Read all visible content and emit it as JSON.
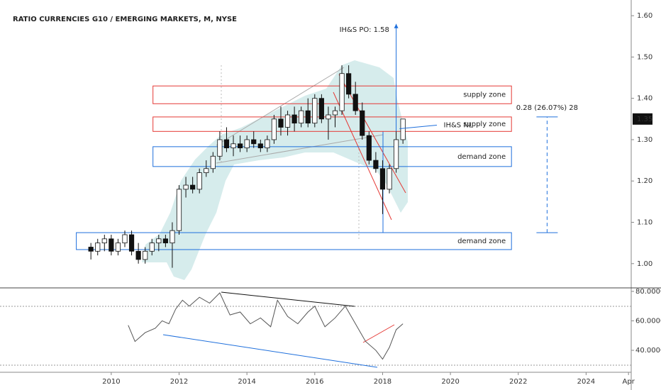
{
  "chart_data": [
    {
      "type": "candlestick",
      "title": "RATIO CURRENCIES G10  / EMERGING MARKETS, M, NYSE",
      "x": [
        2009.4,
        2009.6,
        2009.8,
        2010.0,
        2010.2,
        2010.4,
        2010.6,
        2010.8,
        2011.0,
        2011.2,
        2011.4,
        2011.6,
        2011.8,
        2012.0,
        2012.2,
        2012.4,
        2012.6,
        2012.8,
        2013.0,
        2013.2,
        2013.4,
        2013.6,
        2013.8,
        2014.0,
        2014.2,
        2014.4,
        2014.6,
        2014.8,
        2015.0,
        2015.2,
        2015.4,
        2015.6,
        2015.8,
        2016.0,
        2016.2,
        2016.4,
        2016.6,
        2016.8,
        2017.0,
        2017.2,
        2017.4,
        2017.6,
        2017.8,
        2018.0,
        2018.2,
        2018.4,
        2018.6
      ],
      "open": [
        1.04,
        1.03,
        1.05,
        1.06,
        1.03,
        1.05,
        1.07,
        1.03,
        1.01,
        1.03,
        1.05,
        1.06,
        1.05,
        1.08,
        1.18,
        1.19,
        1.18,
        1.22,
        1.23,
        1.26,
        1.3,
        1.28,
        1.29,
        1.28,
        1.3,
        1.29,
        1.28,
        1.3,
        1.35,
        1.33,
        1.36,
        1.34,
        1.37,
        1.34,
        1.4,
        1.35,
        1.36,
        1.37,
        1.46,
        1.41,
        1.37,
        1.31,
        1.25,
        1.23,
        1.18,
        1.23,
        1.3
      ],
      "high": [
        1.05,
        1.06,
        1.07,
        1.07,
        1.06,
        1.08,
        1.08,
        1.05,
        1.04,
        1.06,
        1.07,
        1.07,
        1.1,
        1.19,
        1.21,
        1.21,
        1.23,
        1.25,
        1.27,
        1.32,
        1.33,
        1.31,
        1.31,
        1.31,
        1.32,
        1.3,
        1.31,
        1.36,
        1.38,
        1.37,
        1.38,
        1.38,
        1.4,
        1.41,
        1.41,
        1.38,
        1.38,
        1.48,
        1.48,
        1.44,
        1.39,
        1.32,
        1.27,
        1.25,
        1.24,
        1.32,
        1.35
      ],
      "low": [
        1.01,
        1.02,
        1.03,
        1.02,
        1.02,
        1.04,
        1.02,
        1.0,
        1.0,
        1.02,
        1.03,
        1.04,
        0.99,
        1.07,
        1.16,
        1.17,
        1.17,
        1.21,
        1.22,
        1.25,
        1.27,
        1.26,
        1.27,
        1.27,
        1.28,
        1.27,
        1.27,
        1.29,
        1.31,
        1.31,
        1.32,
        1.33,
        1.33,
        1.33,
        1.34,
        1.3,
        1.33,
        1.36,
        1.4,
        1.36,
        1.3,
        1.24,
        1.22,
        1.12,
        1.17,
        1.22,
        1.29
      ],
      "close": [
        1.03,
        1.05,
        1.06,
        1.03,
        1.05,
        1.07,
        1.03,
        1.01,
        1.03,
        1.05,
        1.06,
        1.05,
        1.08,
        1.18,
        1.19,
        1.18,
        1.22,
        1.23,
        1.26,
        1.3,
        1.28,
        1.29,
        1.28,
        1.3,
        1.29,
        1.28,
        1.3,
        1.35,
        1.33,
        1.36,
        1.34,
        1.37,
        1.34,
        1.4,
        1.35,
        1.36,
        1.37,
        1.46,
        1.41,
        1.37,
        1.31,
        1.25,
        1.23,
        1.18,
        1.23,
        1.3,
        1.35
      ],
      "up_color": "#ffffff",
      "down_color": "#111111",
      "last_price": 1.35,
      "xlim": [
        2006.72,
        2025.33
      ],
      "ylim": [
        0.943,
        1.638
      ],
      "yticks": [
        {
          "value": 1.0,
          "label": "1.00"
        },
        {
          "value": 1.1,
          "label": "1.10"
        },
        {
          "value": 1.2,
          "label": "1.20"
        },
        {
          "value": 1.3,
          "label": "1.30"
        },
        {
          "value": 1.4,
          "label": "1.40"
        },
        {
          "value": 1.5,
          "label": "1.50"
        },
        {
          "value": 1.6,
          "label": "1.60"
        }
      ],
      "zones": [
        {
          "label": "supply zone",
          "top": 1.43,
          "bottom": 1.387,
          "start": 2011.23,
          "end": 2021.8,
          "color": "#e53935"
        },
        {
          "label": "supply zone",
          "top": 1.355,
          "bottom": 1.32,
          "start": 2011.23,
          "end": 2021.8,
          "color": "#e53935"
        },
        {
          "label": "demand zone",
          "top": 1.283,
          "bottom": 1.235,
          "start": 2011.23,
          "end": 2021.8,
          "color": "#1e6fdc"
        },
        {
          "label": "demand zone",
          "top": 1.075,
          "bottom": 1.034,
          "start": 2008.97,
          "end": 2021.8,
          "color": "#1e6fdc"
        }
      ],
      "target": {
        "label": "IH&S PO: 1.58",
        "from": 1.32,
        "to": 1.58,
        "x": 2018.4
      },
      "neckline": {
        "label": "IH&S NL",
        "value": 1.33
      },
      "measure": {
        "label": "0.28 (26.07%) 28",
        "from": 1.075,
        "to": 1.355,
        "x": 2022.85
      }
    },
    {
      "type": "line",
      "x": [
        2010.5,
        2010.7,
        2011.0,
        2011.3,
        2011.5,
        2011.7,
        2011.9,
        2012.1,
        2012.3,
        2012.6,
        2012.9,
        2013.2,
        2013.5,
        2013.8,
        2014.1,
        2014.4,
        2014.7,
        2014.9,
        2015.2,
        2015.5,
        2015.8,
        2016.0,
        2016.3,
        2016.6,
        2016.9,
        2017.2,
        2017.5,
        2017.8,
        2018.0,
        2018.2,
        2018.4,
        2018.6
      ],
      "values": [
        57,
        46,
        52,
        55,
        60,
        58,
        68,
        74,
        70,
        76,
        72,
        79,
        64,
        66,
        58,
        62,
        56,
        74,
        63,
        58,
        66,
        70,
        56,
        62,
        70,
        58,
        46,
        40,
        34,
        42,
        54,
        58
      ],
      "color": "#555555",
      "xlim": [
        2006.72,
        2025.33
      ],
      "ylim": [
        25.1,
        81.4
      ],
      "yticks": [
        {
          "value": 40,
          "label": "40.0000"
        },
        {
          "value": 60,
          "label": "60.0000"
        },
        {
          "value": 80,
          "label": "80.0000"
        }
      ],
      "xticks": [
        2010,
        2012,
        2014,
        2016,
        2018,
        2020,
        2022,
        2024,
        {
          "value": 2025.25,
          "label": "Apr"
        }
      ]
    }
  ]
}
